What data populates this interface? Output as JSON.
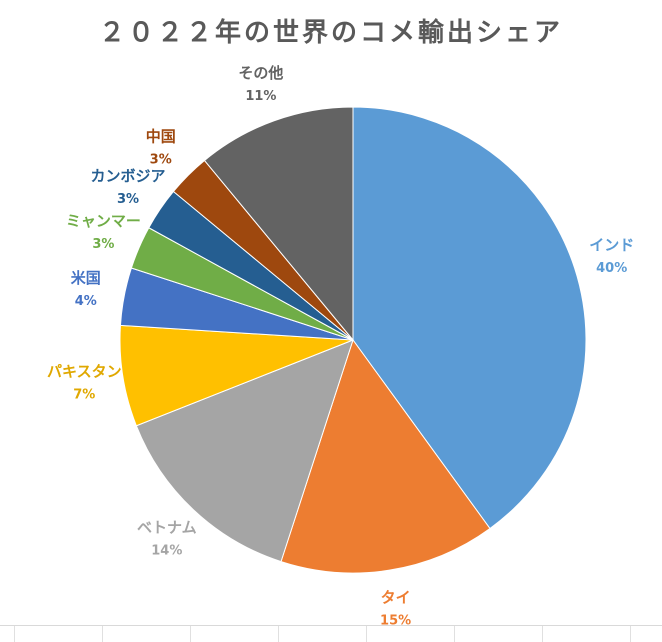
{
  "chart_data": {
    "type": "pie",
    "title": "２０２２年の世界のコメ輸出シェア",
    "slices": [
      {
        "label": "インド",
        "value": 40,
        "display": "40%",
        "color": "#5B9BD5"
      },
      {
        "label": "タイ",
        "value": 15,
        "display": "15%",
        "color": "#ED7D31"
      },
      {
        "label": "ベトナム",
        "value": 14,
        "display": "14%",
        "color": "#A5A5A5"
      },
      {
        "label": "パキスタン",
        "value": 7,
        "display": "7%",
        "color": "#FFC000"
      },
      {
        "label": "米国",
        "value": 4,
        "display": "4%",
        "color": "#4472C4"
      },
      {
        "label": "ミャンマー",
        "value": 3,
        "display": "3%",
        "color": "#70AD47"
      },
      {
        "label": "カンボジア",
        "value": 3,
        "display": "3%",
        "color": "#255E91"
      },
      {
        "label": "中国",
        "value": 3,
        "display": "3%",
        "color": "#9E480E"
      },
      {
        "label": "その他",
        "value": 11,
        "display": "11%",
        "color": "#636363"
      }
    ],
    "start_angle": "12 o'clock",
    "direction": "clockwise",
    "legend": "none (category labels outside slices)"
  }
}
